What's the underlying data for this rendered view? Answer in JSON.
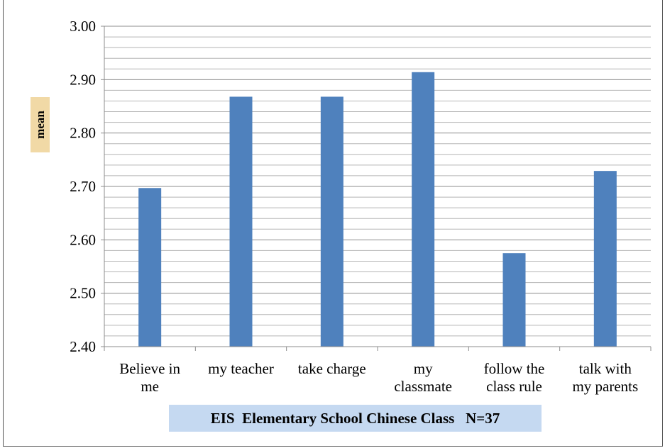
{
  "chart_data": {
    "type": "bar",
    "title": "",
    "categories": [
      [
        "Believe in",
        "me"
      ],
      [
        "my teacher"
      ],
      [
        "take charge"
      ],
      [
        "my",
        "classmate"
      ],
      [
        "follow the",
        "class rule"
      ],
      [
        "talk with",
        "my parents"
      ]
    ],
    "values": [
      2.697,
      2.868,
      2.868,
      2.914,
      2.575,
      2.729
    ],
    "ylabel": "mean",
    "xlabel": "EIS  Elementary School Chinese Class   N=37",
    "ylim": [
      2.4,
      3.0
    ],
    "y_ticks": [
      "2.40",
      "2.50",
      "2.60",
      "2.70",
      "2.80",
      "2.90",
      "3.00"
    ],
    "y_major_step": 0.1,
    "y_minor_step": 0.02,
    "grid": true,
    "legend": "none",
    "bar_color": "#4f81bd"
  }
}
